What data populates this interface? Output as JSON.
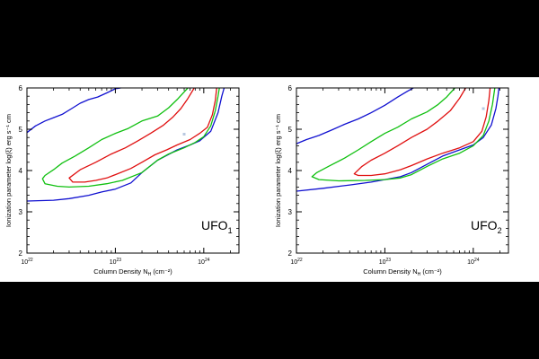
{
  "chart_data": [
    {
      "type": "line",
      "panel_label": "UFO",
      "panel_label_sub": "1",
      "xlabel": "Column Density N",
      "xlabel_sub": "H",
      "xlabel_unit": " (cm⁻²)",
      "ylabel": "Ionization parameter log(ξ) erg s⁻¹ cm",
      "x_scale": "log",
      "xlim": [
        1e+22,
        2.5e+24
      ],
      "ylim": [
        2,
        6
      ],
      "x_ticks": [
        {
          "value": 1e+22,
          "label": "10",
          "exp": "22"
        },
        {
          "value": 1e+23,
          "label": "10",
          "exp": "23"
        },
        {
          "value": 1e+24,
          "label": "10",
          "exp": "24"
        }
      ],
      "y_ticks": [
        "2",
        "3",
        "4",
        "5",
        "6"
      ],
      "marker": {
        "x": 6e+23,
        "y": 4.88,
        "color": "#b8c8e0"
      },
      "series": [
        {
          "color": "#1010d0",
          "points": [
            [
              1e+22,
              4.92
            ],
            [
              1.25e+22,
              5.08
            ],
            [
              1.6e+22,
              5.2
            ],
            [
              2e+22,
              5.28
            ],
            [
              2.5e+22,
              5.36
            ],
            [
              3.2e+22,
              5.5
            ],
            [
              4e+22,
              5.63
            ],
            [
              5e+22,
              5.72
            ],
            [
              6.3e+22,
              5.78
            ],
            [
              8e+22,
              5.88
            ],
            [
              1e+23,
              5.98
            ],
            [
              1.15e+23,
              6.0
            ]
          ]
        },
        {
          "color": "#1010d0",
          "points": [
            [
              1e+22,
              3.26
            ],
            [
              2e+22,
              3.28
            ],
            [
              3e+22,
              3.32
            ],
            [
              5e+22,
              3.4
            ],
            [
              7e+22,
              3.48
            ],
            [
              1e+23,
              3.55
            ],
            [
              1.5e+23,
              3.7
            ],
            [
              2e+23,
              3.95
            ],
            [
              3e+23,
              4.25
            ],
            [
              5e+23,
              4.5
            ],
            [
              7e+23,
              4.62
            ],
            [
              9e+23,
              4.72
            ],
            [
              1.2e+24,
              4.95
            ],
            [
              1.45e+24,
              5.4
            ],
            [
              1.6e+24,
              5.8
            ],
            [
              1.7e+24,
              6.0
            ]
          ]
        },
        {
          "color": "#10c010",
          "points": [
            [
              6.6e+23,
              6.0
            ],
            [
              5e+23,
              5.72
            ],
            [
              4e+23,
              5.52
            ],
            [
              3e+23,
              5.32
            ],
            [
              2e+23,
              5.2
            ],
            [
              1.4e+23,
              5.02
            ],
            [
              1e+23,
              4.9
            ],
            [
              7e+22,
              4.75
            ],
            [
              5e+22,
              4.55
            ],
            [
              3.5e+22,
              4.35
            ],
            [
              2.5e+22,
              4.18
            ],
            [
              2e+22,
              4.02
            ],
            [
              1.6e+22,
              3.88
            ],
            [
              1.5e+22,
              3.8
            ],
            [
              1.6e+22,
              3.68
            ],
            [
              2.2e+22,
              3.62
            ],
            [
              3e+22,
              3.6
            ],
            [
              5e+22,
              3.62
            ],
            [
              8e+22,
              3.68
            ],
            [
              1.2e+23,
              3.76
            ],
            [
              2e+23,
              3.95
            ],
            [
              3e+23,
              4.25
            ],
            [
              4e+23,
              4.4
            ],
            [
              6e+23,
              4.55
            ],
            [
              8e+23,
              4.68
            ],
            [
              1e+24,
              4.82
            ],
            [
              1.2e+24,
              5.08
            ],
            [
              1.35e+24,
              5.45
            ],
            [
              1.45e+24,
              5.8
            ],
            [
              1.5e+24,
              6.0
            ]
          ]
        },
        {
          "color": "#e01010",
          "points": [
            [
              7.8e+23,
              6.0
            ],
            [
              6.5e+23,
              5.72
            ],
            [
              5.5e+23,
              5.5
            ],
            [
              4.5e+23,
              5.3
            ],
            [
              3.5e+23,
              5.1
            ],
            [
              2.5e+23,
              4.9
            ],
            [
              1.8e+23,
              4.72
            ],
            [
              1.3e+23,
              4.55
            ],
            [
              9e+22,
              4.4
            ],
            [
              6e+22,
              4.2
            ],
            [
              4e+22,
              4.02
            ],
            [
              3e+22,
              3.82
            ],
            [
              3.3e+22,
              3.72
            ],
            [
              4.5e+22,
              3.72
            ],
            [
              6e+22,
              3.76
            ],
            [
              8e+22,
              3.82
            ],
            [
              1e+23,
              3.9
            ],
            [
              1.5e+23,
              4.05
            ],
            [
              2e+23,
              4.2
            ],
            [
              2.8e+23,
              4.38
            ],
            [
              3.8e+23,
              4.5
            ],
            [
              5e+23,
              4.62
            ],
            [
              7e+23,
              4.75
            ],
            [
              9e+23,
              4.9
            ],
            [
              1.1e+24,
              5.05
            ],
            [
              1.25e+24,
              5.35
            ],
            [
              1.35e+24,
              5.7
            ],
            [
              1.4e+24,
              6.0
            ]
          ]
        }
      ]
    },
    {
      "type": "line",
      "panel_label": "UFO",
      "panel_label_sub": "2",
      "xlabel": "Column Density N",
      "xlabel_sub": "H",
      "xlabel_unit": " (cm⁻²)",
      "ylabel": "Ionization parameter log(ξ) erg s⁻¹ cm",
      "x_scale": "log",
      "xlim": [
        1e+22,
        2.5e+24
      ],
      "ylim": [
        2,
        6
      ],
      "x_ticks": [
        {
          "value": 1e+22,
          "label": "10",
          "exp": "22"
        },
        {
          "value": 1e+23,
          "label": "10",
          "exp": "23"
        },
        {
          "value": 1e+24,
          "label": "10",
          "exp": "24"
        }
      ],
      "y_ticks": [
        "2",
        "3",
        "4",
        "5",
        "6"
      ],
      "marker": {
        "x": 1.3e+24,
        "y": 5.5,
        "color": "#b8c8e0"
      },
      "series": [
        {
          "color": "#1010d0",
          "points": [
            [
              1e+22,
              4.65
            ],
            [
              1.3e+22,
              4.75
            ],
            [
              1.8e+22,
              4.85
            ],
            [
              2.5e+22,
              4.98
            ],
            [
              3.5e+22,
              5.12
            ],
            [
              5e+22,
              5.25
            ],
            [
              7e+22,
              5.4
            ],
            [
              1e+23,
              5.58
            ],
            [
              1.4e+23,
              5.78
            ],
            [
              1.8e+23,
              5.92
            ],
            [
              2.1e+23,
              6.0
            ]
          ]
        },
        {
          "color": "#1010d0",
          "points": [
            [
              1e+22,
              3.5
            ],
            [
              2e+22,
              3.57
            ],
            [
              4e+22,
              3.65
            ],
            [
              7e+22,
              3.72
            ],
            [
              1e+23,
              3.78
            ],
            [
              1.5e+23,
              3.85
            ],
            [
              2e+23,
              3.95
            ],
            [
              3e+23,
              4.15
            ],
            [
              4.5e+23,
              4.35
            ],
            [
              7e+23,
              4.5
            ],
            [
              1e+24,
              4.62
            ],
            [
              1.3e+24,
              4.8
            ],
            [
              1.6e+24,
              5.1
            ],
            [
              1.8e+24,
              5.5
            ],
            [
              1.9e+24,
              5.8
            ],
            [
              1.95e+24,
              6.0
            ]
          ]
        },
        {
          "color": "#10c010",
          "points": [
            [
              6.2e+23,
              6.0
            ],
            [
              5e+23,
              5.78
            ],
            [
              4e+23,
              5.6
            ],
            [
              3e+23,
              5.42
            ],
            [
              2e+23,
              5.25
            ],
            [
              1.4e+23,
              5.05
            ],
            [
              1e+23,
              4.9
            ],
            [
              7e+22,
              4.7
            ],
            [
              5e+22,
              4.5
            ],
            [
              3.5e+22,
              4.3
            ],
            [
              2.3e+22,
              4.1
            ],
            [
              1.7e+22,
              3.95
            ],
            [
              1.5e+22,
              3.85
            ],
            [
              1.8e+22,
              3.78
            ],
            [
              3e+22,
              3.75
            ],
            [
              6e+22,
              3.76
            ],
            [
              1e+23,
              3.78
            ],
            [
              1.5e+23,
              3.82
            ],
            [
              2e+23,
              3.9
            ],
            [
              3e+23,
              4.1
            ],
            [
              4.5e+23,
              4.28
            ],
            [
              7e+23,
              4.42
            ],
            [
              1e+24,
              4.6
            ],
            [
              1.3e+24,
              4.85
            ],
            [
              1.5e+24,
              5.2
            ],
            [
              1.65e+24,
              5.6
            ],
            [
              1.75e+24,
              6.0
            ]
          ]
        },
        {
          "color": "#e01010",
          "points": [
            [
              8.2e+23,
              6.0
            ],
            [
              7e+23,
              5.75
            ],
            [
              5.5e+23,
              5.45
            ],
            [
              4e+23,
              5.2
            ],
            [
              3e+23,
              5.0
            ],
            [
              2e+23,
              4.8
            ],
            [
              1.4e+23,
              4.6
            ],
            [
              1e+23,
              4.42
            ],
            [
              7e+22,
              4.25
            ],
            [
              5.5e+22,
              4.1
            ],
            [
              4.5e+22,
              3.92
            ],
            [
              5e+22,
              3.88
            ],
            [
              7e+22,
              3.88
            ],
            [
              1e+23,
              3.92
            ],
            [
              1.5e+23,
              4.02
            ],
            [
              2e+23,
              4.12
            ],
            [
              3e+23,
              4.28
            ],
            [
              4.5e+23,
              4.42
            ],
            [
              7e+23,
              4.55
            ],
            [
              1e+24,
              4.7
            ],
            [
              1.25e+24,
              4.95
            ],
            [
              1.4e+24,
              5.3
            ],
            [
              1.5e+24,
              5.7
            ],
            [
              1.55e+24,
              6.0
            ]
          ]
        }
      ]
    }
  ]
}
